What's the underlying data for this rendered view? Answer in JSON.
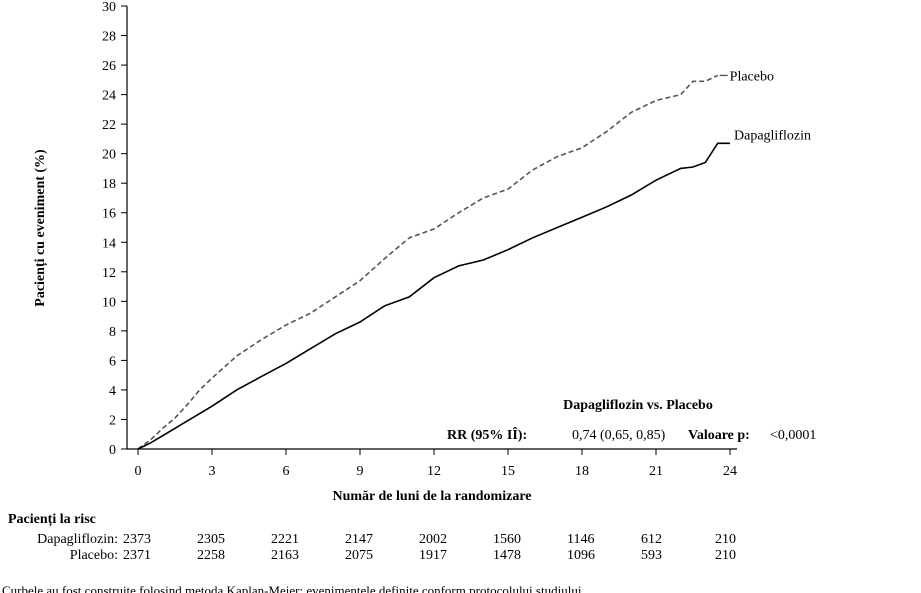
{
  "chart_data": {
    "type": "line",
    "xlabel": "Număr de luni de la randomizare",
    "ylabel": "Pacienți cu eveniment (%)",
    "xlim": [
      0,
      24
    ],
    "ylim": [
      0,
      30
    ],
    "xticks": [
      0,
      3,
      6,
      9,
      12,
      15,
      18,
      21,
      24
    ],
    "yticks": [
      0,
      2,
      4,
      6,
      8,
      10,
      12,
      14,
      16,
      18,
      20,
      22,
      24,
      26,
      28,
      30
    ],
    "grid": false,
    "series": [
      {
        "name": "Placebo",
        "style": "dashed",
        "color": "#555555",
        "x": [
          0,
          0.5,
          1,
          1.5,
          2,
          2.5,
          3,
          4,
          5,
          6,
          7,
          8,
          9,
          10,
          11,
          12,
          13,
          14,
          15,
          16,
          17,
          18,
          19,
          20,
          21,
          22,
          22.5,
          23,
          23.5
        ],
        "y": [
          0,
          0.6,
          1.4,
          2.1,
          3.0,
          4.0,
          4.8,
          6.3,
          7.4,
          8.4,
          9.2,
          10.3,
          11.4,
          12.9,
          14.3,
          14.9,
          16.0,
          17.0,
          17.6,
          18.9,
          19.8,
          20.4,
          21.5,
          22.8,
          23.6,
          24.0,
          24.9,
          24.9,
          25.3
        ]
      },
      {
        "name": "Dapagliflozin",
        "style": "solid",
        "color": "#000000",
        "x": [
          0,
          0.5,
          1,
          1.5,
          2,
          2.5,
          3,
          4,
          5,
          6,
          7,
          8,
          9,
          10,
          11,
          12,
          13,
          14,
          15,
          16,
          17,
          18,
          19,
          20,
          21,
          22,
          22.5,
          23,
          23.5,
          24
        ],
        "y": [
          0,
          0.4,
          0.9,
          1.4,
          1.9,
          2.4,
          2.9,
          4.0,
          4.9,
          5.8,
          6.8,
          7.8,
          8.6,
          9.7,
          10.3,
          11.6,
          12.4,
          12.8,
          13.5,
          14.3,
          15.0,
          15.7,
          16.4,
          17.2,
          18.2,
          19.0,
          19.1,
          19.4,
          20.7,
          20.7
        ]
      }
    ],
    "annotations": {
      "comparison": "Dapagliflozin vs. Placebo",
      "rr_label": "RR (95% IÎ):",
      "rr_value": "0,74 (0,65, 0,85)",
      "p_label": "Valoare p:",
      "p_value": "<0,0001"
    }
  },
  "risk_table": {
    "title": "Pacienți la risc",
    "rows": [
      {
        "label": "Dapagliflozin:",
        "values": [
          "2373",
          "2305",
          "2221",
          "2147",
          "2002",
          "1560",
          "1146",
          "612",
          "210"
        ]
      },
      {
        "label": "Placebo:",
        "values": [
          "2371",
          "2258",
          "2163",
          "2075",
          "1917",
          "1478",
          "1096",
          "593",
          "210"
        ]
      }
    ]
  },
  "footer_text": "Curbele au fost construite folosind metoda Kaplan-Meier; evenimentele definite conform protocolului studiului."
}
